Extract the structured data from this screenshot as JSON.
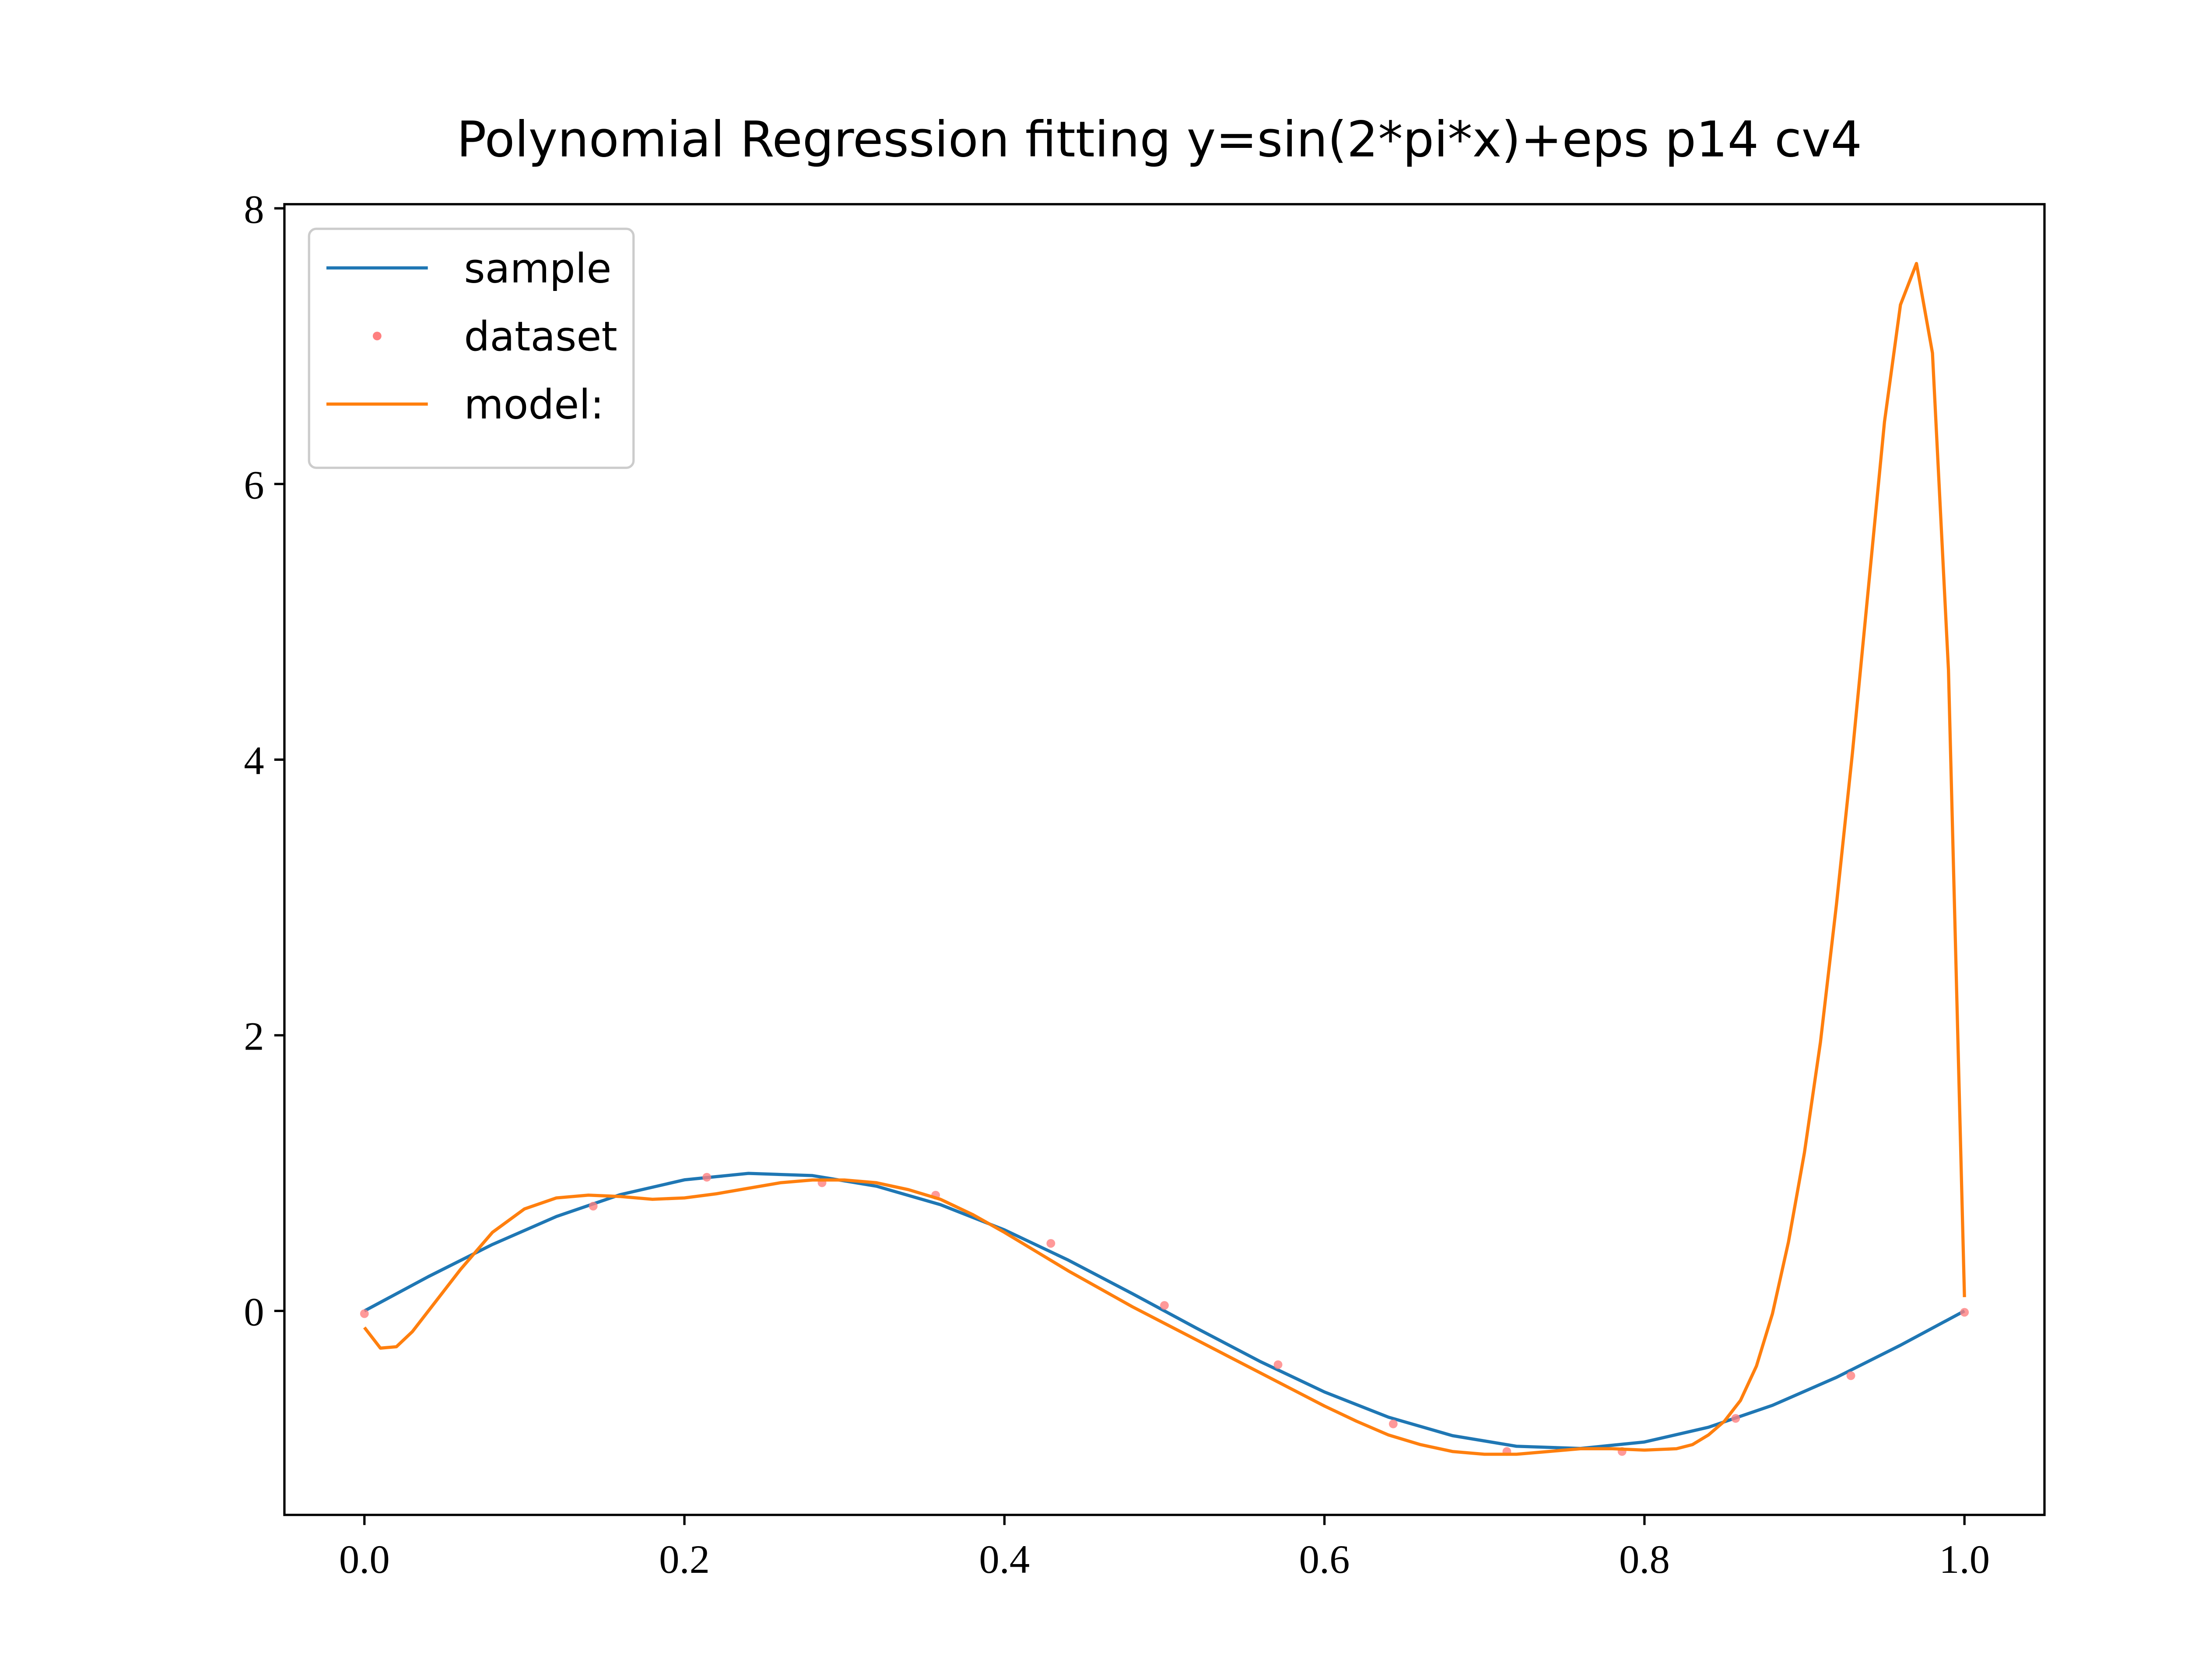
{
  "chart_data": {
    "type": "line",
    "title": "Polynomial Regression fitting y=sin(2*pi*x)+eps p14 cv4",
    "xlim": [
      -0.05,
      1.05
    ],
    "ylim": [
      -1.48,
      8.03
    ],
    "xticks": [
      {
        "value": 0,
        "label": "0.0"
      },
      0.2,
      0.4,
      0.6,
      0.8,
      {
        "value": 1,
        "label": "1.0"
      }
    ],
    "yticks": [
      0,
      2,
      4,
      6,
      8
    ],
    "legend": "upper left",
    "series": [
      {
        "name": "sample",
        "color": "#1f77b4",
        "style": "line",
        "x": [
          0,
          0.04,
          0.08,
          0.12,
          0.16,
          0.2,
          0.24,
          0.28,
          0.32,
          0.36,
          0.4,
          0.44,
          0.48,
          0.52,
          0.56,
          0.6,
          0.64,
          0.68,
          0.72,
          0.76,
          0.8,
          0.84,
          0.88,
          0.92,
          0.96,
          1.0
        ],
        "values": [
          0,
          0.249,
          0.482,
          0.685,
          0.844,
          0.951,
          0.998,
          0.982,
          0.905,
          0.771,
          0.588,
          0.368,
          0.125,
          -0.125,
          -0.368,
          -0.588,
          -0.771,
          -0.905,
          -0.982,
          -0.998,
          -0.951,
          -0.844,
          -0.685,
          -0.482,
          -0.249,
          0
        ]
      },
      {
        "name": "dataset",
        "color": "#ff8080",
        "style": "marker",
        "x": [
          0,
          0.143,
          0.214,
          0.286,
          0.357,
          0.429,
          0.5,
          0.571,
          0.643,
          0.714,
          0.786,
          0.857,
          0.929,
          1.0
        ],
        "values": [
          -0.02,
          0.76,
          0.97,
          0.93,
          0.84,
          0.49,
          0.04,
          -0.39,
          -0.82,
          -1.02,
          -1.02,
          -0.78,
          -0.47,
          -0.01
        ]
      },
      {
        "name": "model:",
        "color": "#ff7f0e",
        "style": "line",
        "x": [
          0,
          0.01,
          0.02,
          0.03,
          0.04,
          0.06,
          0.08,
          0.1,
          0.12,
          0.14,
          0.16,
          0.18,
          0.2,
          0.22,
          0.24,
          0.26,
          0.28,
          0.3,
          0.32,
          0.34,
          0.36,
          0.38,
          0.4,
          0.42,
          0.44,
          0.46,
          0.48,
          0.5,
          0.52,
          0.54,
          0.56,
          0.58,
          0.6,
          0.62,
          0.64,
          0.66,
          0.68,
          0.7,
          0.72,
          0.74,
          0.76,
          0.78,
          0.8,
          0.82,
          0.83,
          0.84,
          0.85,
          0.86,
          0.87,
          0.88,
          0.89,
          0.9,
          0.91,
          0.92,
          0.93,
          0.94,
          0.95,
          0.96,
          0.97,
          0.98,
          0.99,
          1.0
        ],
        "values": [
          -0.12,
          -0.27,
          -0.26,
          -0.15,
          0.0,
          0.3,
          0.57,
          0.74,
          0.82,
          0.84,
          0.83,
          0.81,
          0.82,
          0.85,
          0.89,
          0.93,
          0.95,
          0.95,
          0.93,
          0.88,
          0.81,
          0.7,
          0.57,
          0.43,
          0.29,
          0.16,
          0.03,
          -0.09,
          -0.21,
          -0.33,
          -0.45,
          -0.57,
          -0.69,
          -0.8,
          -0.9,
          -0.97,
          -1.02,
          -1.04,
          -1.04,
          -1.02,
          -1.0,
          -1.0,
          -1.01,
          -1.0,
          -0.97,
          -0.9,
          -0.8,
          -0.65,
          -0.4,
          -0.02,
          0.5,
          1.15,
          1.95,
          2.95,
          4.05,
          5.25,
          6.45,
          7.3,
          7.6,
          6.95,
          4.65,
          0.1
        ]
      }
    ]
  }
}
